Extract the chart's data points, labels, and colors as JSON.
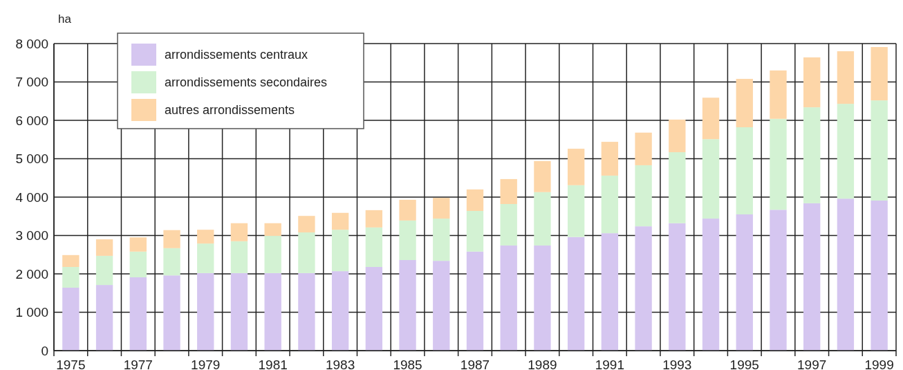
{
  "chart_data": {
    "type": "bar",
    "stacked": true,
    "ylabel": "ha",
    "categories": [
      "1975",
      null,
      "1977",
      null,
      "1979",
      null,
      "1981",
      null,
      "1983",
      null,
      "1985",
      null,
      "1987",
      null,
      "1989",
      null,
      "1991",
      null,
      "1993",
      null,
      "1995",
      null,
      "1997",
      null,
      "1999"
    ],
    "series": [
      {
        "name": "arrondissements centraux",
        "color": "#d5c6f0",
        "values": [
          1640,
          1710,
          1910,
          1960,
          2020,
          2020,
          2020,
          2020,
          2070,
          2180,
          2360,
          2340,
          2580,
          2740,
          2740,
          2960,
          3060,
          3240,
          3320,
          3440,
          3550,
          3670,
          3840,
          3960,
          3910
        ]
      },
      {
        "name": "arrondissements secondaires",
        "color": "#d3f2d3",
        "values": [
          540,
          760,
          670,
          710,
          770,
          830,
          970,
          1060,
          1080,
          1030,
          1030,
          1100,
          1060,
          1080,
          1390,
          1350,
          1500,
          1590,
          1850,
          2070,
          2270,
          2370,
          2500,
          2470,
          2610
        ]
      },
      {
        "name": "autres arrondissements",
        "color": "#fdd6a8",
        "values": [
          310,
          430,
          370,
          470,
          360,
          470,
          330,
          430,
          440,
          450,
          540,
          540,
          560,
          650,
          810,
          950,
          880,
          850,
          850,
          1080,
          1260,
          1260,
          1300,
          1370,
          1390
        ]
      }
    ],
    "ylim": [
      0,
      8000
    ],
    "yticks": [
      0,
      {
        "value": 1000,
        "label": "1 000"
      },
      {
        "value": 2000,
        "label": "2 000"
      },
      {
        "value": 3000,
        "label": "3 000"
      },
      {
        "value": 4000,
        "label": "4 000"
      },
      {
        "value": 5000,
        "label": "5 000"
      },
      {
        "value": 6000,
        "label": "6 000"
      },
      {
        "value": 7000,
        "label": "7 000"
      },
      {
        "value": 8000,
        "label": "8 000"
      }
    ],
    "grid": true,
    "legend": "top left"
  }
}
